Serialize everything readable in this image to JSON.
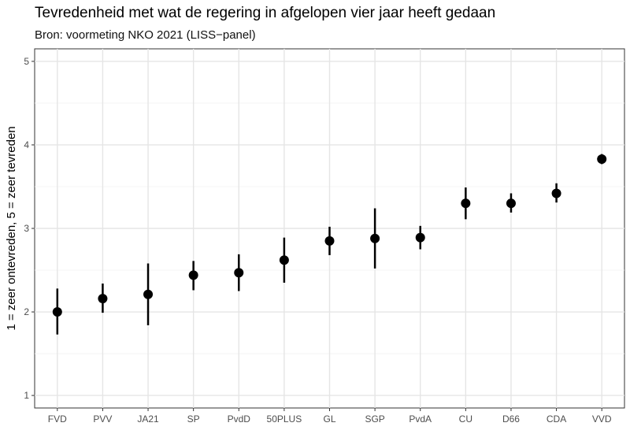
{
  "chart_data": {
    "type": "scatter",
    "title": "Tevredenheid met wat de regering in afgelopen vier jaar heeft gedaan",
    "subtitle": "Bron: voormeting NKO 2021 (LISS−panel)",
    "xlabel": "",
    "ylabel": "1 = zeer ontevreden, 5 = zeer tevreden",
    "ylim": [
      0.85,
      5.15
    ],
    "yticks": [
      "1",
      "2",
      "3",
      "4",
      "5"
    ],
    "grid": true,
    "categories": [
      "FVD",
      "PVV",
      "JA21",
      "SP",
      "PvdD",
      "50PLUS",
      "GL",
      "SGP",
      "PvdA",
      "CU",
      "D66",
      "CDA",
      "VVD"
    ],
    "values": [
      2.0,
      2.16,
      2.21,
      2.44,
      2.47,
      2.62,
      2.85,
      2.88,
      2.89,
      3.3,
      3.3,
      3.42,
      3.83
    ],
    "lower": [
      1.73,
      1.99,
      1.84,
      2.26,
      2.25,
      2.35,
      2.68,
      2.52,
      2.75,
      3.11,
      3.19,
      3.31,
      3.77
    ],
    "upper": [
      2.28,
      2.34,
      2.58,
      2.61,
      2.69,
      2.89,
      3.02,
      3.24,
      3.03,
      3.49,
      3.42,
      3.54,
      3.89
    ]
  }
}
